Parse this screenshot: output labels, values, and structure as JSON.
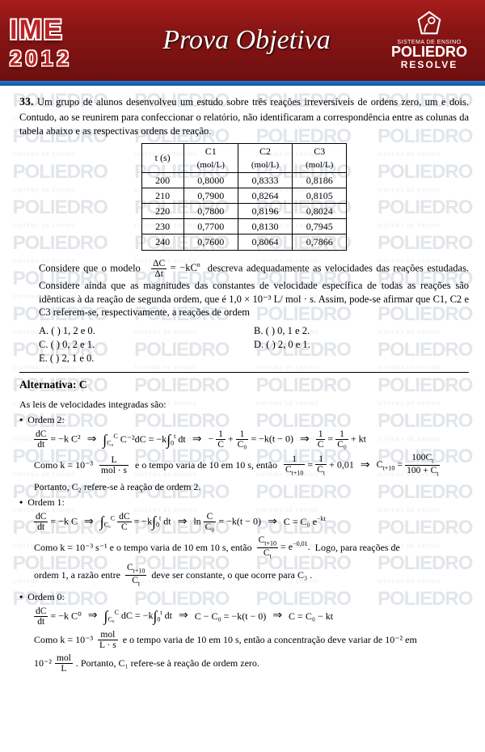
{
  "header": {
    "brand": "IME",
    "year": "2012",
    "title": "Prova Objetiva",
    "system": "SISTEMA DE ENSINO",
    "poli": "POLIEDRO",
    "resolve": "RESOLVE"
  },
  "q": {
    "num": "33.",
    "text": "Um grupo de alunos desenvolveu um estudo sobre três reações irreversíveis de ordens zero, um e dois. Contudo, ao se reunirem para confeccionar o relatório, não identificaram a correspondência entre as colunas da tabela abaixo e as respectivas ordens de reação.",
    "table": {
      "head": [
        "t (s)",
        "C1",
        "C2",
        "C3"
      ],
      "sub": [
        "",
        "(mol/L)",
        "(mol/L)",
        "(mol/L)"
      ],
      "rows": [
        [
          "200",
          "0,8000",
          "0,8333",
          "0,8186"
        ],
        [
          "210",
          "0,7900",
          "0,8264",
          "0,8105"
        ],
        [
          "220",
          "0,7800",
          "0,8196",
          "0,8024"
        ],
        [
          "230",
          "0,7700",
          "0,8130",
          "0,7945"
        ],
        [
          "240",
          "0,7600",
          "0,8064",
          "0,7866"
        ]
      ]
    },
    "mid1": "Considere que o modelo",
    "mid2": "descreva adequadamente as velocidades das reações estudadas. Considere ainda que as magnitudes das constantes de velocidade específica de todas as reações são idênticas à da reação de segunda ordem, que é 1,0 × 10⁻³ L/ mol · s. Assim, pode-se afirmar que C1, C2 e C3 referem-se, respectivamente, a reações de ordem",
    "opts": {
      "A": "A. (   ) 1, 2 e 0.",
      "B": "B. (   ) 0, 1 e 2.",
      "C": "C. (   ) 0, 2 e 1.",
      "D": "D. (   ) 2, 0 e 1.",
      "E": "E. (   ) 2, 1 e 0."
    }
  },
  "ans": {
    "label": "Alternativa: C"
  },
  "sol": {
    "intro": "As leis de velocidades integradas são:",
    "o2": "Ordem 2:",
    "o2txt1": "Como k = 10⁻³",
    "o2txt1b": "e o tempo varia de 10 em 10 s, então",
    "o2txt2": "Portanto, C₂ refere-se à reação de ordem 2.",
    "o1": "Ordem 1:",
    "o1txt1": "Como k = 10⁻³ s⁻¹ e o tempo varia de 10 em 10 s, então",
    "o1txt1b": "Logo, para reações de",
    "o1txt2a": "ordem 1, a razão entre",
    "o1txt2b": "deve ser constante, o que ocorre para C₃ .",
    "o0": "Ordem 0:",
    "o0txt1": "Como k = 10⁻³",
    "o0txt1b": "e o tempo varia de 10 em 10 s, então a concentração deve variar de 10⁻² em",
    "o0txt2": "10⁻²",
    "o0txt2b": ". Portanto, C₁ refere-se à reação de ordem zero."
  },
  "watermark": "POLIEDRO"
}
